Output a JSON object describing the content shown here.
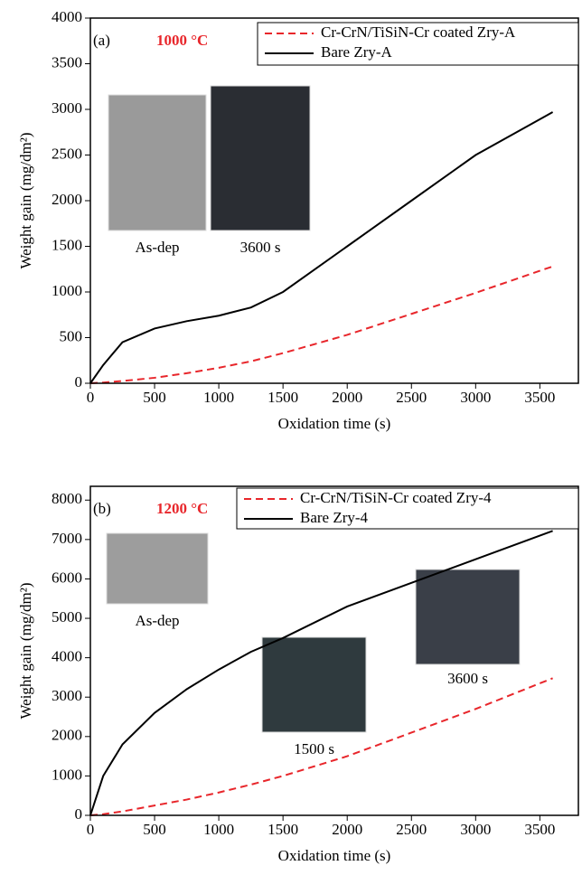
{
  "chart_data": [
    {
      "type": "line",
      "panel_label": "(a)",
      "annotation": "1000 °C",
      "x_label": "Oxidation time (s)",
      "y_label": "Weight gain (mg/dm²)",
      "x": [
        0,
        100,
        250,
        500,
        750,
        1000,
        1250,
        1500,
        2000,
        2500,
        3000,
        3600
      ],
      "series": [
        {
          "name": "Cr-CrN/TiSiN-Cr coated Zry-A",
          "color": "#e8262b",
          "style": "dashed",
          "values": [
            0,
            8,
            25,
            60,
            110,
            170,
            240,
            330,
            530,
            760,
            990,
            1280
          ]
        },
        {
          "name": "Bare Zry-A",
          "color": "#000000",
          "style": "solid",
          "values": [
            0,
            200,
            450,
            600,
            680,
            740,
            830,
            1000,
            1500,
            2000,
            2500,
            2970
          ]
        }
      ],
      "xlim": [
        0,
        3800
      ],
      "ylim": [
        0,
        4000
      ],
      "xticks": [
        0,
        500,
        1000,
        1500,
        2000,
        2500,
        3000,
        3500
      ],
      "yticks": [
        0,
        500,
        1000,
        1500,
        2000,
        2500,
        3000,
        3500,
        4000
      ],
      "image_labels": [
        "As-dep",
        "3600 s"
      ]
    },
    {
      "type": "line",
      "panel_label": "(b)",
      "annotation": "1200 °C",
      "x_label": "Oxidation time (s)",
      "y_label": "Weight gain (mg/dm²)",
      "x": [
        0,
        100,
        250,
        500,
        750,
        1000,
        1250,
        1500,
        2000,
        2500,
        3000,
        3600
      ],
      "series": [
        {
          "name": "Cr-CrN/TiSiN-Cr coated Zry-4",
          "color": "#e8262b",
          "style": "dashed",
          "values": [
            0,
            30,
            100,
            250,
            400,
            580,
            780,
            1000,
            1500,
            2100,
            2700,
            3480
          ]
        },
        {
          "name": "Bare Zry-4",
          "color": "#000000",
          "style": "solid",
          "values": [
            0,
            1000,
            1800,
            2600,
            3200,
            3700,
            4150,
            4500,
            5300,
            5900,
            6500,
            7220
          ]
        }
      ],
      "xlim": [
        0,
        3800
      ],
      "ylim": [
        0,
        8350
      ],
      "xticks": [
        0,
        500,
        1000,
        1500,
        2000,
        2500,
        3000,
        3500
      ],
      "yticks": [
        0,
        1000,
        2000,
        3000,
        4000,
        5000,
        6000,
        7000,
        8000
      ],
      "image_labels": [
        "As-dep",
        "1500 s",
        "3600 s"
      ]
    }
  ]
}
